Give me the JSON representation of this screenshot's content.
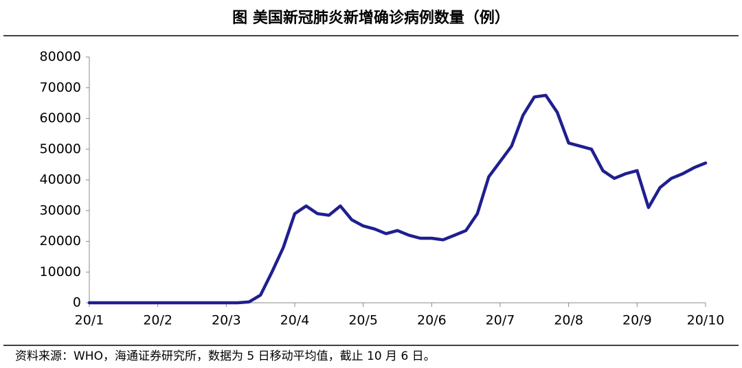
{
  "chart_data": {
    "type": "line",
    "title": "图  美国新冠肺炎新增确诊病例数量（例）",
    "source": "资料来源：WHO，海通证券研究所，数据为 5 日移动平均值，截止 10 月 6 日。",
    "categories": [
      "20/1",
      null,
      null,
      null,
      null,
      null,
      "20/2",
      null,
      null,
      null,
      null,
      null,
      "20/3",
      null,
      null,
      null,
      null,
      null,
      "20/4",
      null,
      null,
      null,
      null,
      null,
      "20/5",
      null,
      null,
      null,
      null,
      null,
      "20/6",
      null,
      null,
      null,
      null,
      null,
      "20/7",
      null,
      null,
      null,
      null,
      null,
      "20/8",
      null,
      null,
      null,
      null,
      null,
      "20/9",
      null,
      null,
      null,
      null,
      null,
      "20/10"
    ],
    "values": [
      0,
      0,
      0,
      0,
      0,
      0,
      0,
      0,
      0,
      0,
      0,
      0,
      0,
      0,
      300,
      2500,
      10000,
      18000,
      29000,
      31500,
      29000,
      28500,
      31500,
      27000,
      25000,
      24000,
      22500,
      23500,
      22000,
      21000,
      21000,
      20500,
      22000,
      23500,
      29000,
      41000,
      46000,
      51000,
      61000,
      67000,
      67500,
      62000,
      52000,
      51000,
      50000,
      43000,
      40500,
      42000,
      43000,
      31000,
      37500,
      40500,
      42000,
      44000,
      45500
    ],
    "color": "#1f1f8f",
    "ylim": [
      0,
      80000
    ],
    "yticks": [
      0,
      10000,
      20000,
      30000,
      40000,
      50000,
      60000,
      70000,
      80000
    ]
  }
}
